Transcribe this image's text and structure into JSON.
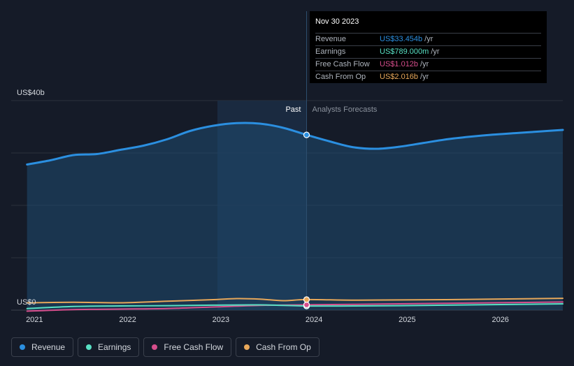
{
  "chart_data": {
    "type": "area",
    "x_range": [
      2020.75,
      2026.67
    ],
    "ylim": [
      0,
      40
    ],
    "y_axis_label_top": "US$40b",
    "y_axis_label_bottom": "US$0",
    "x_ticks": [
      "2021",
      "2022",
      "2023",
      "2024",
      "2025",
      "2026"
    ],
    "past_label": "Past",
    "forecast_label": "Analysts Forecasts",
    "divider_x": 2023.92,
    "grid": true,
    "series": [
      {
        "name": "Revenue",
        "color": "#2b8fe0",
        "x": [
          2020.92,
          2021.17,
          2021.42,
          2021.67,
          2021.92,
          2022.17,
          2022.42,
          2022.67,
          2022.92,
          2023.17,
          2023.42,
          2023.67,
          2023.92,
          2024.17,
          2024.42,
          2024.67,
          2024.92,
          2025.17,
          2025.42,
          2025.67,
          2025.92,
          2026.17,
          2026.42,
          2026.67
        ],
        "values": [
          27.8,
          28.6,
          29.6,
          29.8,
          30.6,
          31.4,
          32.6,
          34.2,
          35.2,
          35.7,
          35.6,
          34.8,
          33.454,
          32.2,
          31.1,
          30.8,
          31.2,
          31.9,
          32.6,
          33.1,
          33.5,
          33.8,
          34.1,
          34.4
        ]
      },
      {
        "name": "Earnings",
        "color": "#58e0c4",
        "x": [
          2020.92,
          2021.42,
          2021.92,
          2022.42,
          2022.92,
          2023.42,
          2023.92,
          2024.42,
          2024.92,
          2025.42,
          2025.92,
          2026.42,
          2026.67
        ],
        "values": [
          0.3,
          0.7,
          0.8,
          0.85,
          0.95,
          1.0,
          0.789,
          0.8,
          0.85,
          0.95,
          1.05,
          1.15,
          1.2
        ]
      },
      {
        "name": "Free Cash Flow",
        "color": "#d64e8c",
        "x": [
          2020.92,
          2021.42,
          2021.92,
          2022.42,
          2022.92,
          2023.42,
          2023.92,
          2024.42,
          2024.92,
          2025.42,
          2025.92,
          2026.42,
          2026.67
        ],
        "values": [
          -0.2,
          0.1,
          0.2,
          0.3,
          0.6,
          0.9,
          1.012,
          1.1,
          1.2,
          1.3,
          1.4,
          1.5,
          1.55
        ]
      },
      {
        "name": "Cash From Op",
        "color": "#e8a85a",
        "x": [
          2020.92,
          2021.42,
          2021.92,
          2022.42,
          2022.92,
          2023.17,
          2023.42,
          2023.67,
          2023.92,
          2024.42,
          2024.92,
          2025.42,
          2025.92,
          2026.42,
          2026.67
        ],
        "values": [
          1.4,
          1.5,
          1.4,
          1.7,
          2.0,
          2.2,
          2.1,
          1.8,
          2.016,
          1.9,
          1.95,
          2.0,
          2.1,
          2.2,
          2.25
        ]
      }
    ]
  },
  "tooltip": {
    "date": "Nov 30 2023",
    "rows": [
      {
        "label": "Revenue",
        "value": "US$33.454b",
        "unit": "/yr",
        "color": "#2b8fe0"
      },
      {
        "label": "Earnings",
        "value": "US$789.000m",
        "unit": "/yr",
        "color": "#58e0c4"
      },
      {
        "label": "Free Cash Flow",
        "value": "US$1.012b",
        "unit": "/yr",
        "color": "#d64e8c"
      },
      {
        "label": "Cash From Op",
        "value": "US$2.016b",
        "unit": "/yr",
        "color": "#e8a85a"
      }
    ]
  },
  "legend": [
    {
      "label": "Revenue",
      "color": "#2b8fe0"
    },
    {
      "label": "Earnings",
      "color": "#58e0c4"
    },
    {
      "label": "Free Cash Flow",
      "color": "#d64e8c"
    },
    {
      "label": "Cash From Op",
      "color": "#e8a85a"
    }
  ]
}
